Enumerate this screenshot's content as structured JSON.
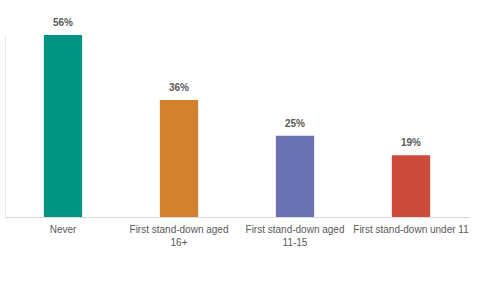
{
  "chart_data": {
    "type": "bar",
    "categories": [
      "Never",
      "First stand-down aged 16+",
      "First stand-down aged 11-15",
      "First stand-down under 11"
    ],
    "values": [
      56,
      36,
      25,
      19
    ],
    "value_labels": [
      "56%",
      "36%",
      "25%",
      "19%"
    ],
    "colors": [
      "#009483",
      "#d4812f",
      "#6b72b2",
      "#cc4b3a"
    ],
    "ylim": [
      0,
      56
    ],
    "data_labels": true,
    "tick_labels": "x",
    "grid": false
  }
}
